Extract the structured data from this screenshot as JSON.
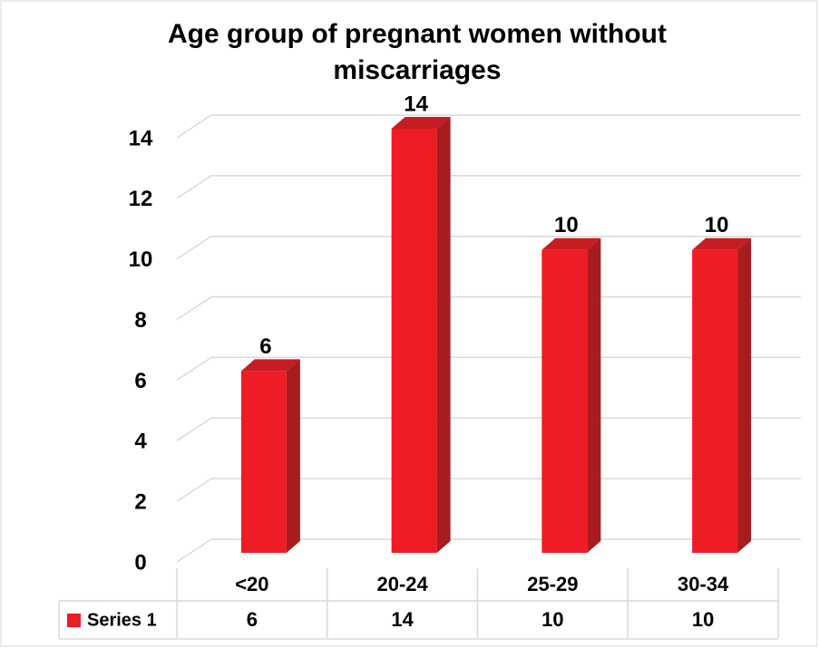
{
  "chart_data": {
    "type": "bar3d",
    "title": "Age group of pregnant women without miscarriages",
    "categories": [
      "<20",
      "20-24",
      "25-29",
      "30-34"
    ],
    "series": [
      {
        "name": "Series 1",
        "color": "#ee1c25",
        "values": [
          6,
          14,
          10,
          10
        ]
      }
    ],
    "ylim": [
      0,
      14
    ],
    "yticks": [
      0,
      2,
      4,
      6,
      8,
      10,
      12,
      14
    ],
    "grid": true,
    "data_labels": true,
    "data_table": true
  }
}
